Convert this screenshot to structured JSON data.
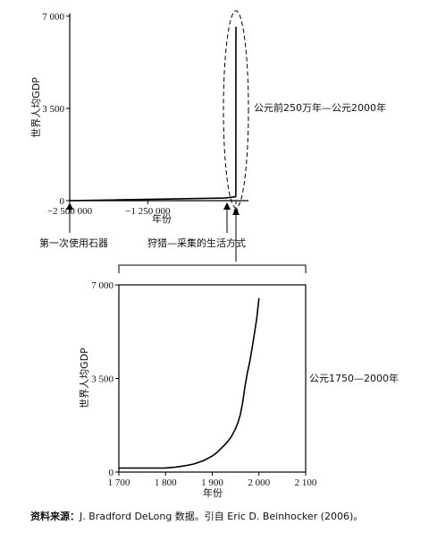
{
  "chart_data": [
    {
      "type": "line",
      "ylabel": "世界人均GDP",
      "xlabel": "年份",
      "annotation": "公元前250万年—公元2000年",
      "xlim": [
        -2500000,
        0
      ],
      "ylim": [
        0,
        7000
      ],
      "xticks": [
        -2500000,
        -1250000,
        0
      ],
      "xtick_labels": [
        "−2 500 000",
        "−1 250 000",
        "0"
      ],
      "yticks": [
        0,
        3500,
        7000
      ],
      "ytick_labels": [
        "0",
        "3 500",
        "7 000"
      ],
      "callouts": [
        {
          "label": "第一次使用石器",
          "x": -2500000
        },
        {
          "label": "狩猎—采集的生活方式",
          "x": -10000
        }
      ],
      "series": [
        {
          "x": [
            -2500000,
            -10000,
            1700,
            1800,
            1850,
            1900,
            1950,
            2000
          ],
          "y": [
            0,
            100,
            150,
            200,
            300,
            700,
            2000,
            6600
          ]
        }
      ]
    },
    {
      "type": "line",
      "ylabel": "世界人均GDP",
      "xlabel": "年份",
      "annotation": "公元1750—2000年",
      "xlim": [
        1700,
        2100
      ],
      "ylim": [
        0,
        7000
      ],
      "xticks": [
        1700,
        1800,
        1900,
        2000,
        2100
      ],
      "xtick_labels": [
        "1 700",
        "1 800",
        "1 900",
        "2 000",
        "2 100"
      ],
      "yticks": [
        0,
        3500,
        7000
      ],
      "ytick_labels": [
        "0",
        "3 500",
        "7 000"
      ],
      "series": [
        {
          "x": [
            1700,
            1750,
            1780,
            1800,
            1820,
            1840,
            1860,
            1880,
            1900,
            1910,
            1920,
            1930,
            1940,
            1950,
            1955,
            1960,
            1965,
            1970,
            1975,
            1980,
            1985,
            1990,
            1995,
            2000
          ],
          "y": [
            150,
            150,
            150,
            155,
            180,
            230,
            300,
            420,
            600,
            730,
            900,
            1080,
            1300,
            1620,
            1850,
            2150,
            2600,
            3200,
            3700,
            4100,
            4600,
            5150,
            5700,
            6500
          ]
        }
      ]
    }
  ],
  "source": {
    "label": "资料来源：",
    "text": "J. Bradford DeLong 数据。引自 Eric D. Beinhocker (2006)。"
  }
}
